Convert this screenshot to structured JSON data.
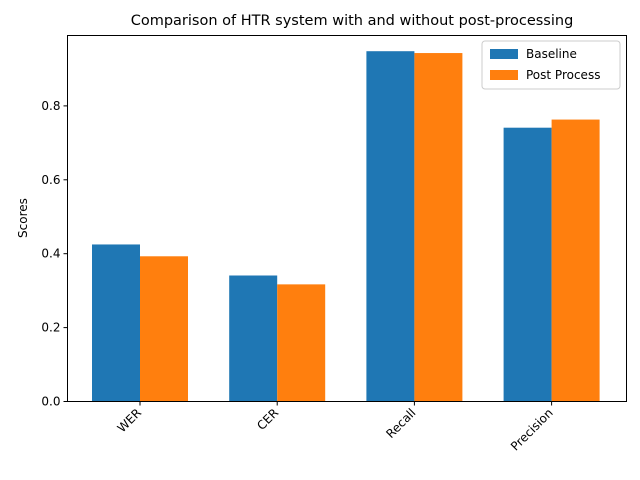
{
  "chart_data": {
    "type": "bar",
    "title": "Comparison of HTR system with and without post-processing",
    "xlabel": "",
    "ylabel": "Scores",
    "categories": [
      "WER",
      "CER",
      "Recall",
      "Precision"
    ],
    "series": [
      {
        "name": "Baseline",
        "color": "#1f77b4",
        "values": [
          0.425,
          0.341,
          0.948,
          0.741
        ]
      },
      {
        "name": "Post Process",
        "color": "#ff7f0e",
        "values": [
          0.393,
          0.317,
          0.943,
          0.763
        ]
      }
    ],
    "ylim": [
      0,
      0.9905
    ],
    "yticks": [
      "0.0",
      "0.2",
      "0.4",
      "0.6",
      "0.8"
    ],
    "grid": false,
    "legend_position": "top-right"
  }
}
